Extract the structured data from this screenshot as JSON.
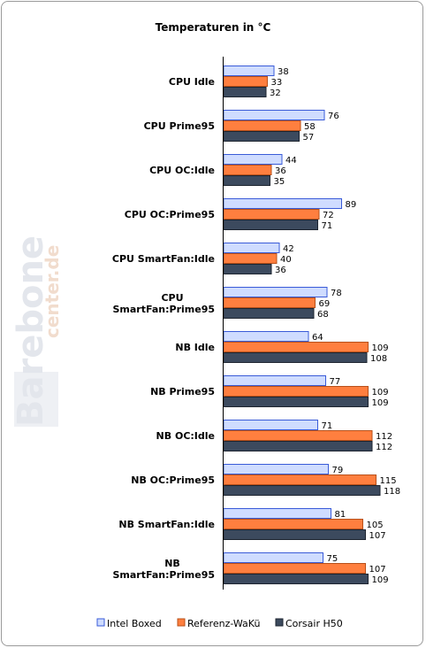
{
  "chart_data": {
    "type": "bar",
    "orientation": "horizontal",
    "title": "Temperaturen in °C",
    "categories": [
      "CPU Idle",
      "CPU Prime95",
      "CPU OC:Idle",
      "CPU OC:Prime95",
      "CPU SmartFan:Idle",
      "CPU SmartFan:Prime95",
      "NB Idle",
      "NB Prime95",
      "NB OC:Idle",
      "NB OC:Prime95",
      "NB SmartFan:Idle",
      "NB SmartFan:Prime95"
    ],
    "category_lines": [
      [
        "CPU Idle"
      ],
      [
        "CPU Prime95"
      ],
      [
        "CPU OC:Idle"
      ],
      [
        "CPU OC:Prime95"
      ],
      [
        "CPU SmartFan:Idle"
      ],
      [
        "CPU",
        "SmartFan:Prime95"
      ],
      [
        "NB Idle"
      ],
      [
        "NB Prime95"
      ],
      [
        "NB OC:Idle"
      ],
      [
        "NB OC:Prime95"
      ],
      [
        "NB SmartFan:Idle"
      ],
      [
        "NB",
        "SmartFan:Prime95"
      ]
    ],
    "series": [
      {
        "name": "Intel Boxed",
        "values": [
          38,
          76,
          44,
          89,
          42,
          78,
          64,
          77,
          71,
          79,
          81,
          75
        ],
        "color": "#cfdcff",
        "stroke": "#3a5bd8"
      },
      {
        "name": "Referenz-WaKü",
        "values": [
          33,
          58,
          36,
          72,
          40,
          69,
          109,
          109,
          112,
          115,
          105,
          107
        ],
        "color": "#ff7f3f",
        "stroke": "#b8501a"
      },
      {
        "name": "Corsair H50",
        "values": [
          32,
          57,
          35,
          71,
          36,
          68,
          108,
          109,
          112,
          118,
          107,
          109
        ],
        "color": "#3c4a5e",
        "stroke": "#1e2530"
      }
    ],
    "xlim": [
      0,
      150
    ],
    "grid": false,
    "legend": "bottom"
  },
  "watermark": {
    "main": "Barebone",
    "sub": "center.de"
  }
}
